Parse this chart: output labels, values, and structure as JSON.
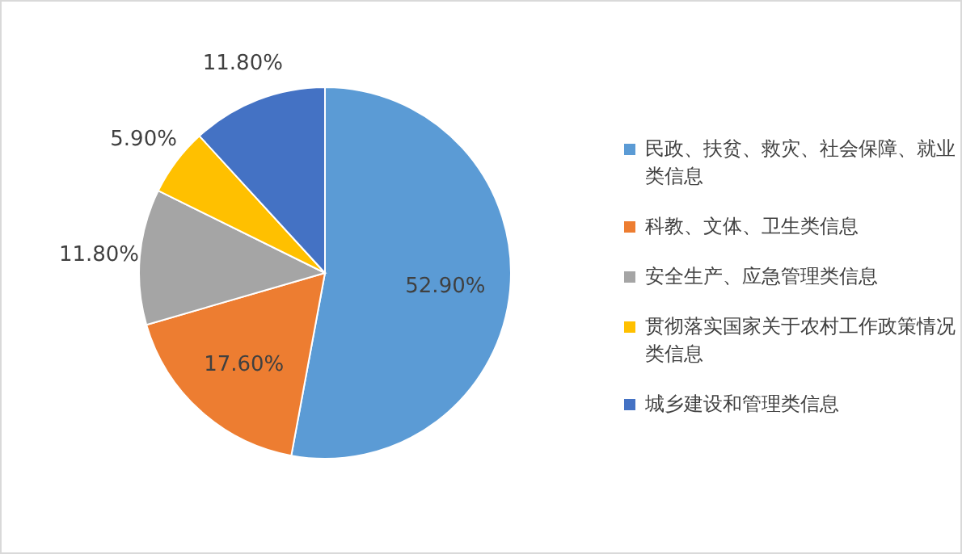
{
  "chart_data": {
    "type": "pie",
    "categories": [
      "民政、扶贫、救灾、社会保障、就业类信息",
      "科教、文体、卫生类信息",
      "安全生产、应急管理类信息",
      "贯彻落实国家关于农村工作政策情况类信息",
      "城乡建设和管理类信息"
    ],
    "values": [
      52.9,
      17.6,
      11.8,
      5.9,
      11.8
    ],
    "colors": [
      "#5b9bd5",
      "#ed7d31",
      "#a5a5a5",
      "#ffc000",
      "#4472c4"
    ],
    "value_labels": [
      "52.90%",
      "17.60%",
      "11.80%",
      "5.90%",
      "11.80%"
    ],
    "legend": "right"
  }
}
